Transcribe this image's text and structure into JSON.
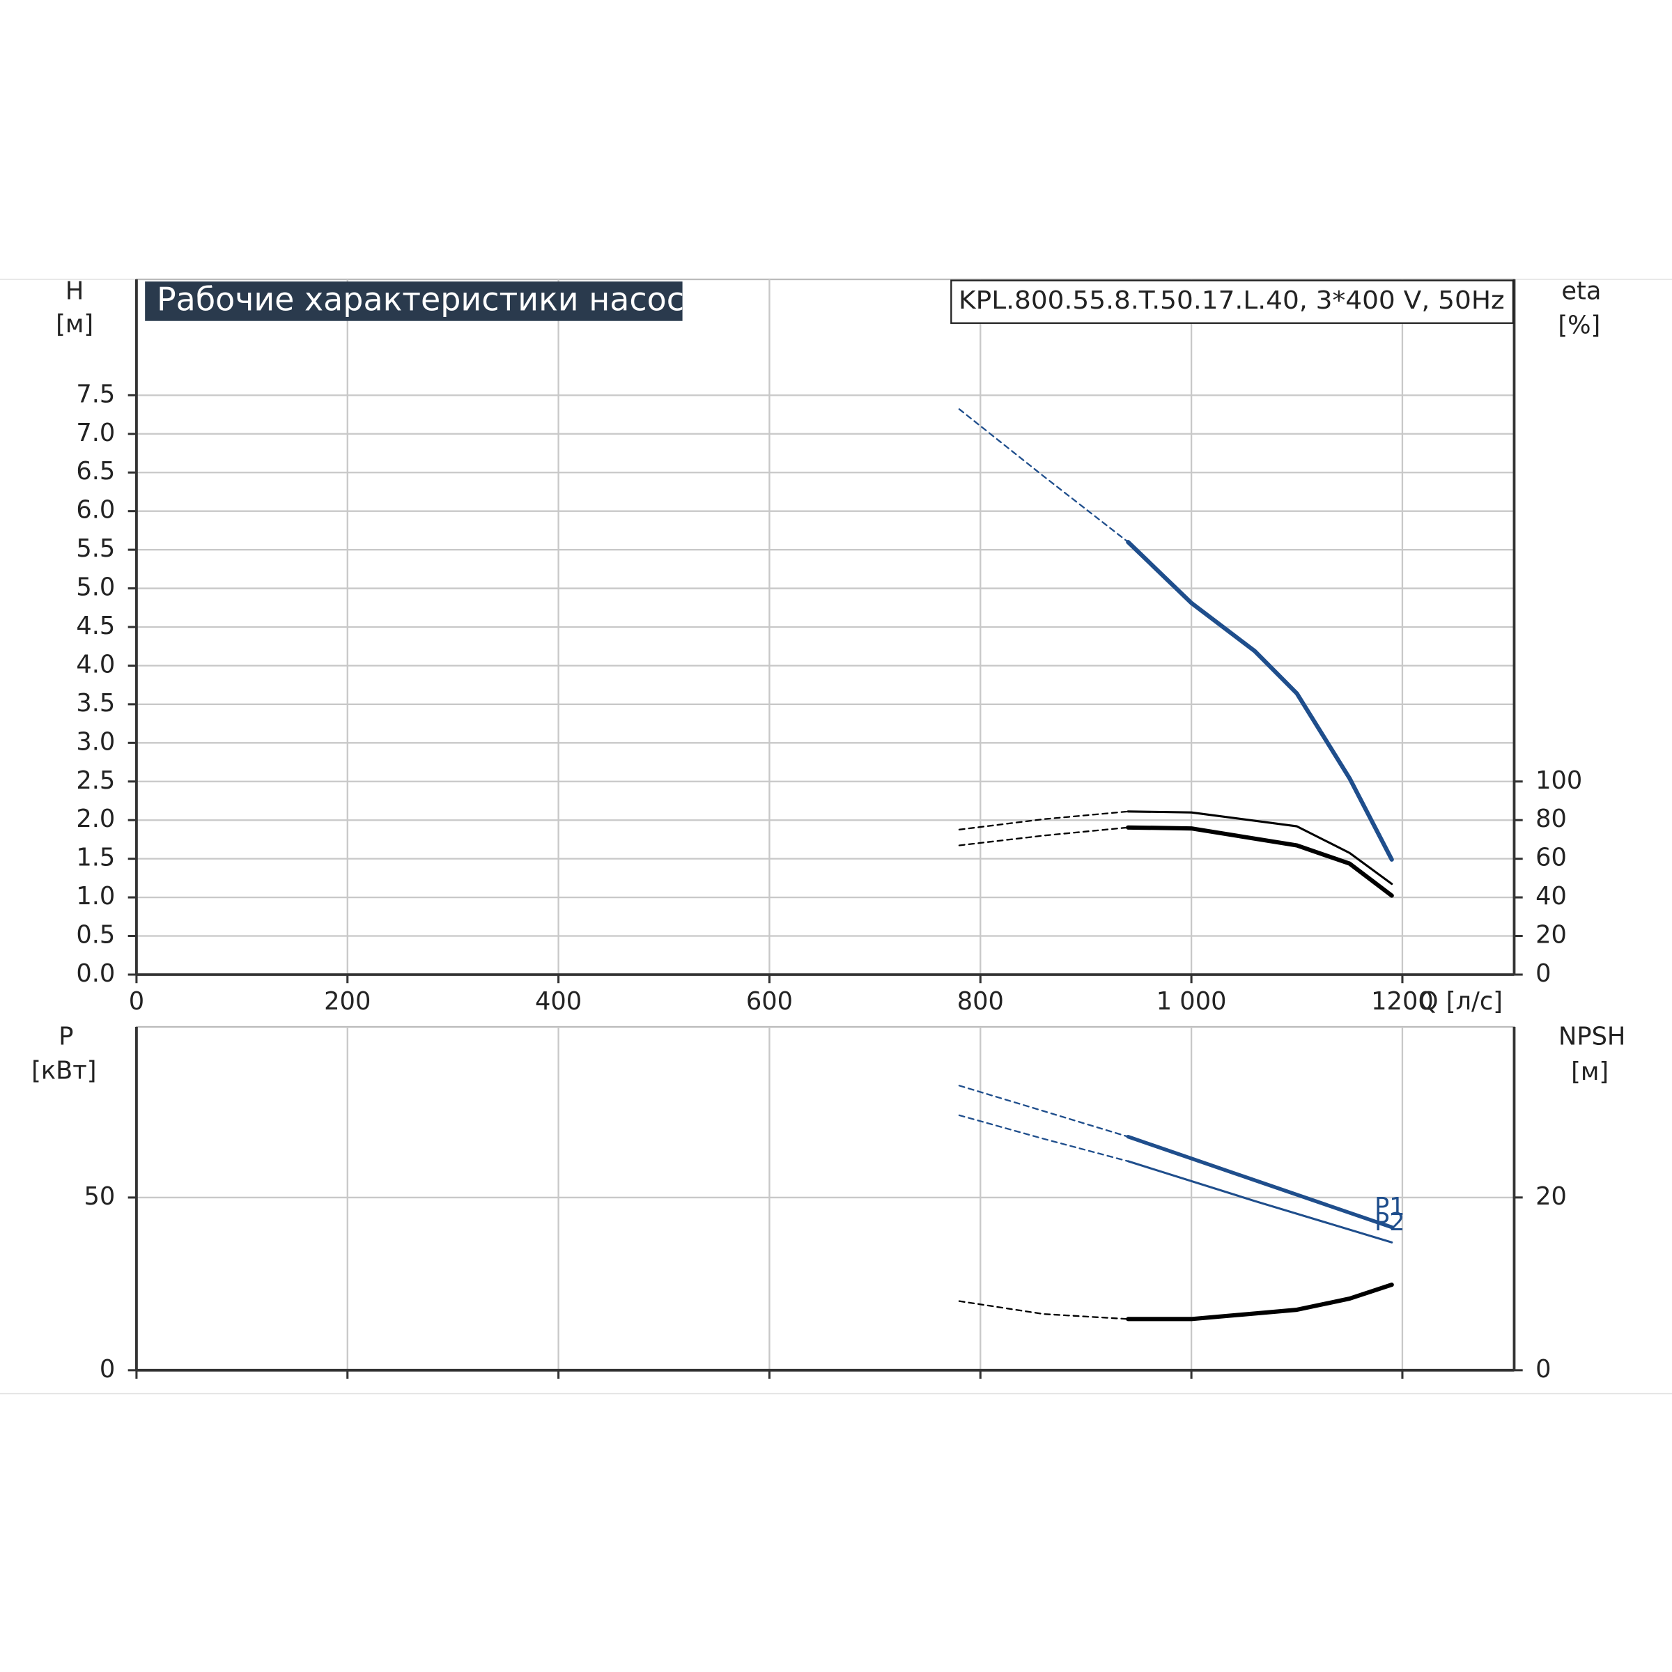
{
  "chart_data": [
    {
      "type": "line",
      "title": "Рабочие характеристики насоса",
      "subtitle": "KPL.800.55.8.T.50.17.L.40, 3*400 V, 50Hz",
      "ylabel": "H",
      "yunit": "[м]",
      "y2label": "eta",
      "y2unit": "[%]",
      "xlabel": "Q [л/с]",
      "xlim": [
        0,
        1306
      ],
      "xticks": [
        0,
        200,
        400,
        600,
        800,
        {
          "value": 1000,
          "label": "1 000"
        },
        1200
      ],
      "ylim": [
        0,
        9
      ],
      "yticks": [
        {
          "value": 0,
          "label": "0.0"
        },
        0.5,
        {
          "value": 1,
          "label": "1.0"
        },
        1.5,
        {
          "value": 2,
          "label": "2.0"
        },
        2.5,
        {
          "value": 3,
          "label": "3.0"
        },
        3.5,
        {
          "value": 4,
          "label": "4.0"
        },
        4.5,
        {
          "value": 5,
          "label": "5.0"
        },
        5.5,
        {
          "value": 6,
          "label": "6.0"
        },
        6.5,
        {
          "value": 7,
          "label": "7.0"
        },
        7.5
      ],
      "y2lim": [
        0,
        360
      ],
      "y2ticks": [
        0,
        20,
        40,
        60,
        80,
        100
      ],
      "grid": true,
      "xtick_labels": true,
      "series": [
        {
          "color": "#1f4e8c",
          "width": 1.5,
          "dashed": true,
          "x": [
            780,
            860,
            940
          ],
          "values": [
            7.32,
            6.45,
            5.6
          ]
        },
        {
          "color": "#1f4e8c",
          "width": 4,
          "dashed": false,
          "x": [
            940,
            1000,
            1060,
            1100,
            1150,
            1190
          ],
          "values": [
            5.6,
            4.81,
            4.19,
            3.64,
            2.54,
            1.49
          ]
        },
        {
          "color": "#000000",
          "width": 1.5,
          "dashed": true,
          "axis": "y2",
          "x": [
            780,
            860,
            940
          ],
          "values": [
            75.1,
            80.5,
            84.5
          ]
        },
        {
          "color": "#000000",
          "width": 2,
          "dashed": false,
          "axis": "y2",
          "x": [
            940,
            1000,
            1100,
            1150,
            1190
          ],
          "values": [
            84.5,
            84,
            76.8,
            63,
            47
          ]
        },
        {
          "color": "#000000",
          "width": 1.5,
          "dashed": true,
          "axis": "y2",
          "x": [
            780,
            860,
            940
          ],
          "values": [
            66.9,
            72,
            76.2
          ]
        },
        {
          "color": "#000000",
          "width": 4,
          "dashed": false,
          "axis": "y2",
          "x": [
            940,
            1000,
            1100,
            1150,
            1190
          ],
          "values": [
            76.2,
            75.7,
            66.9,
            57.5,
            40.9
          ]
        }
      ]
    },
    {
      "type": "line",
      "ylabel": "P",
      "yunit": "[кВт]",
      "y2label": "NPSH",
      "y2unit": "[м]",
      "xlim": [
        0,
        1306
      ],
      "xticks": [
        0,
        200,
        400,
        600,
        800,
        1000,
        1200
      ],
      "ylim": [
        0,
        99.4
      ],
      "yticks": [
        0,
        50
      ],
      "y2lim": [
        0,
        39.75
      ],
      "y2ticks": [
        0,
        20
      ],
      "grid": true,
      "xtick_labels": false,
      "series": [
        {
          "color": "#1f4e8c",
          "width": 1.5,
          "dashed": true,
          "x": [
            780,
            860,
            940
          ],
          "values": [
            82.4,
            75,
            67.6
          ]
        },
        {
          "name": "P1",
          "color": "#1f4e8c",
          "width": 3.5,
          "dashed": false,
          "x": [
            940,
            1060,
            1190
          ],
          "values": [
            67.6,
            55,
            41.4
          ]
        },
        {
          "color": "#1f4e8c",
          "width": 1.5,
          "dashed": true,
          "x": [
            780,
            860,
            940
          ],
          "values": [
            73.8,
            67,
            60.5
          ]
        },
        {
          "name": "P2",
          "color": "#1f4e8c",
          "width": 2,
          "dashed": false,
          "x": [
            940,
            1060,
            1190
          ],
          "values": [
            60.5,
            49,
            37
          ]
        },
        {
          "color": "#000000",
          "width": 1.5,
          "dashed": true,
          "axis": "y2",
          "x": [
            780,
            860,
            940
          ],
          "values": [
            8,
            6.5,
            5.93
          ]
        },
        {
          "color": "#000000",
          "width": 4,
          "dashed": false,
          "axis": "y2",
          "x": [
            940,
            1000,
            1100,
            1150,
            1190
          ],
          "values": [
            5.93,
            5.93,
            7,
            8.3,
            9.9
          ]
        }
      ]
    }
  ]
}
